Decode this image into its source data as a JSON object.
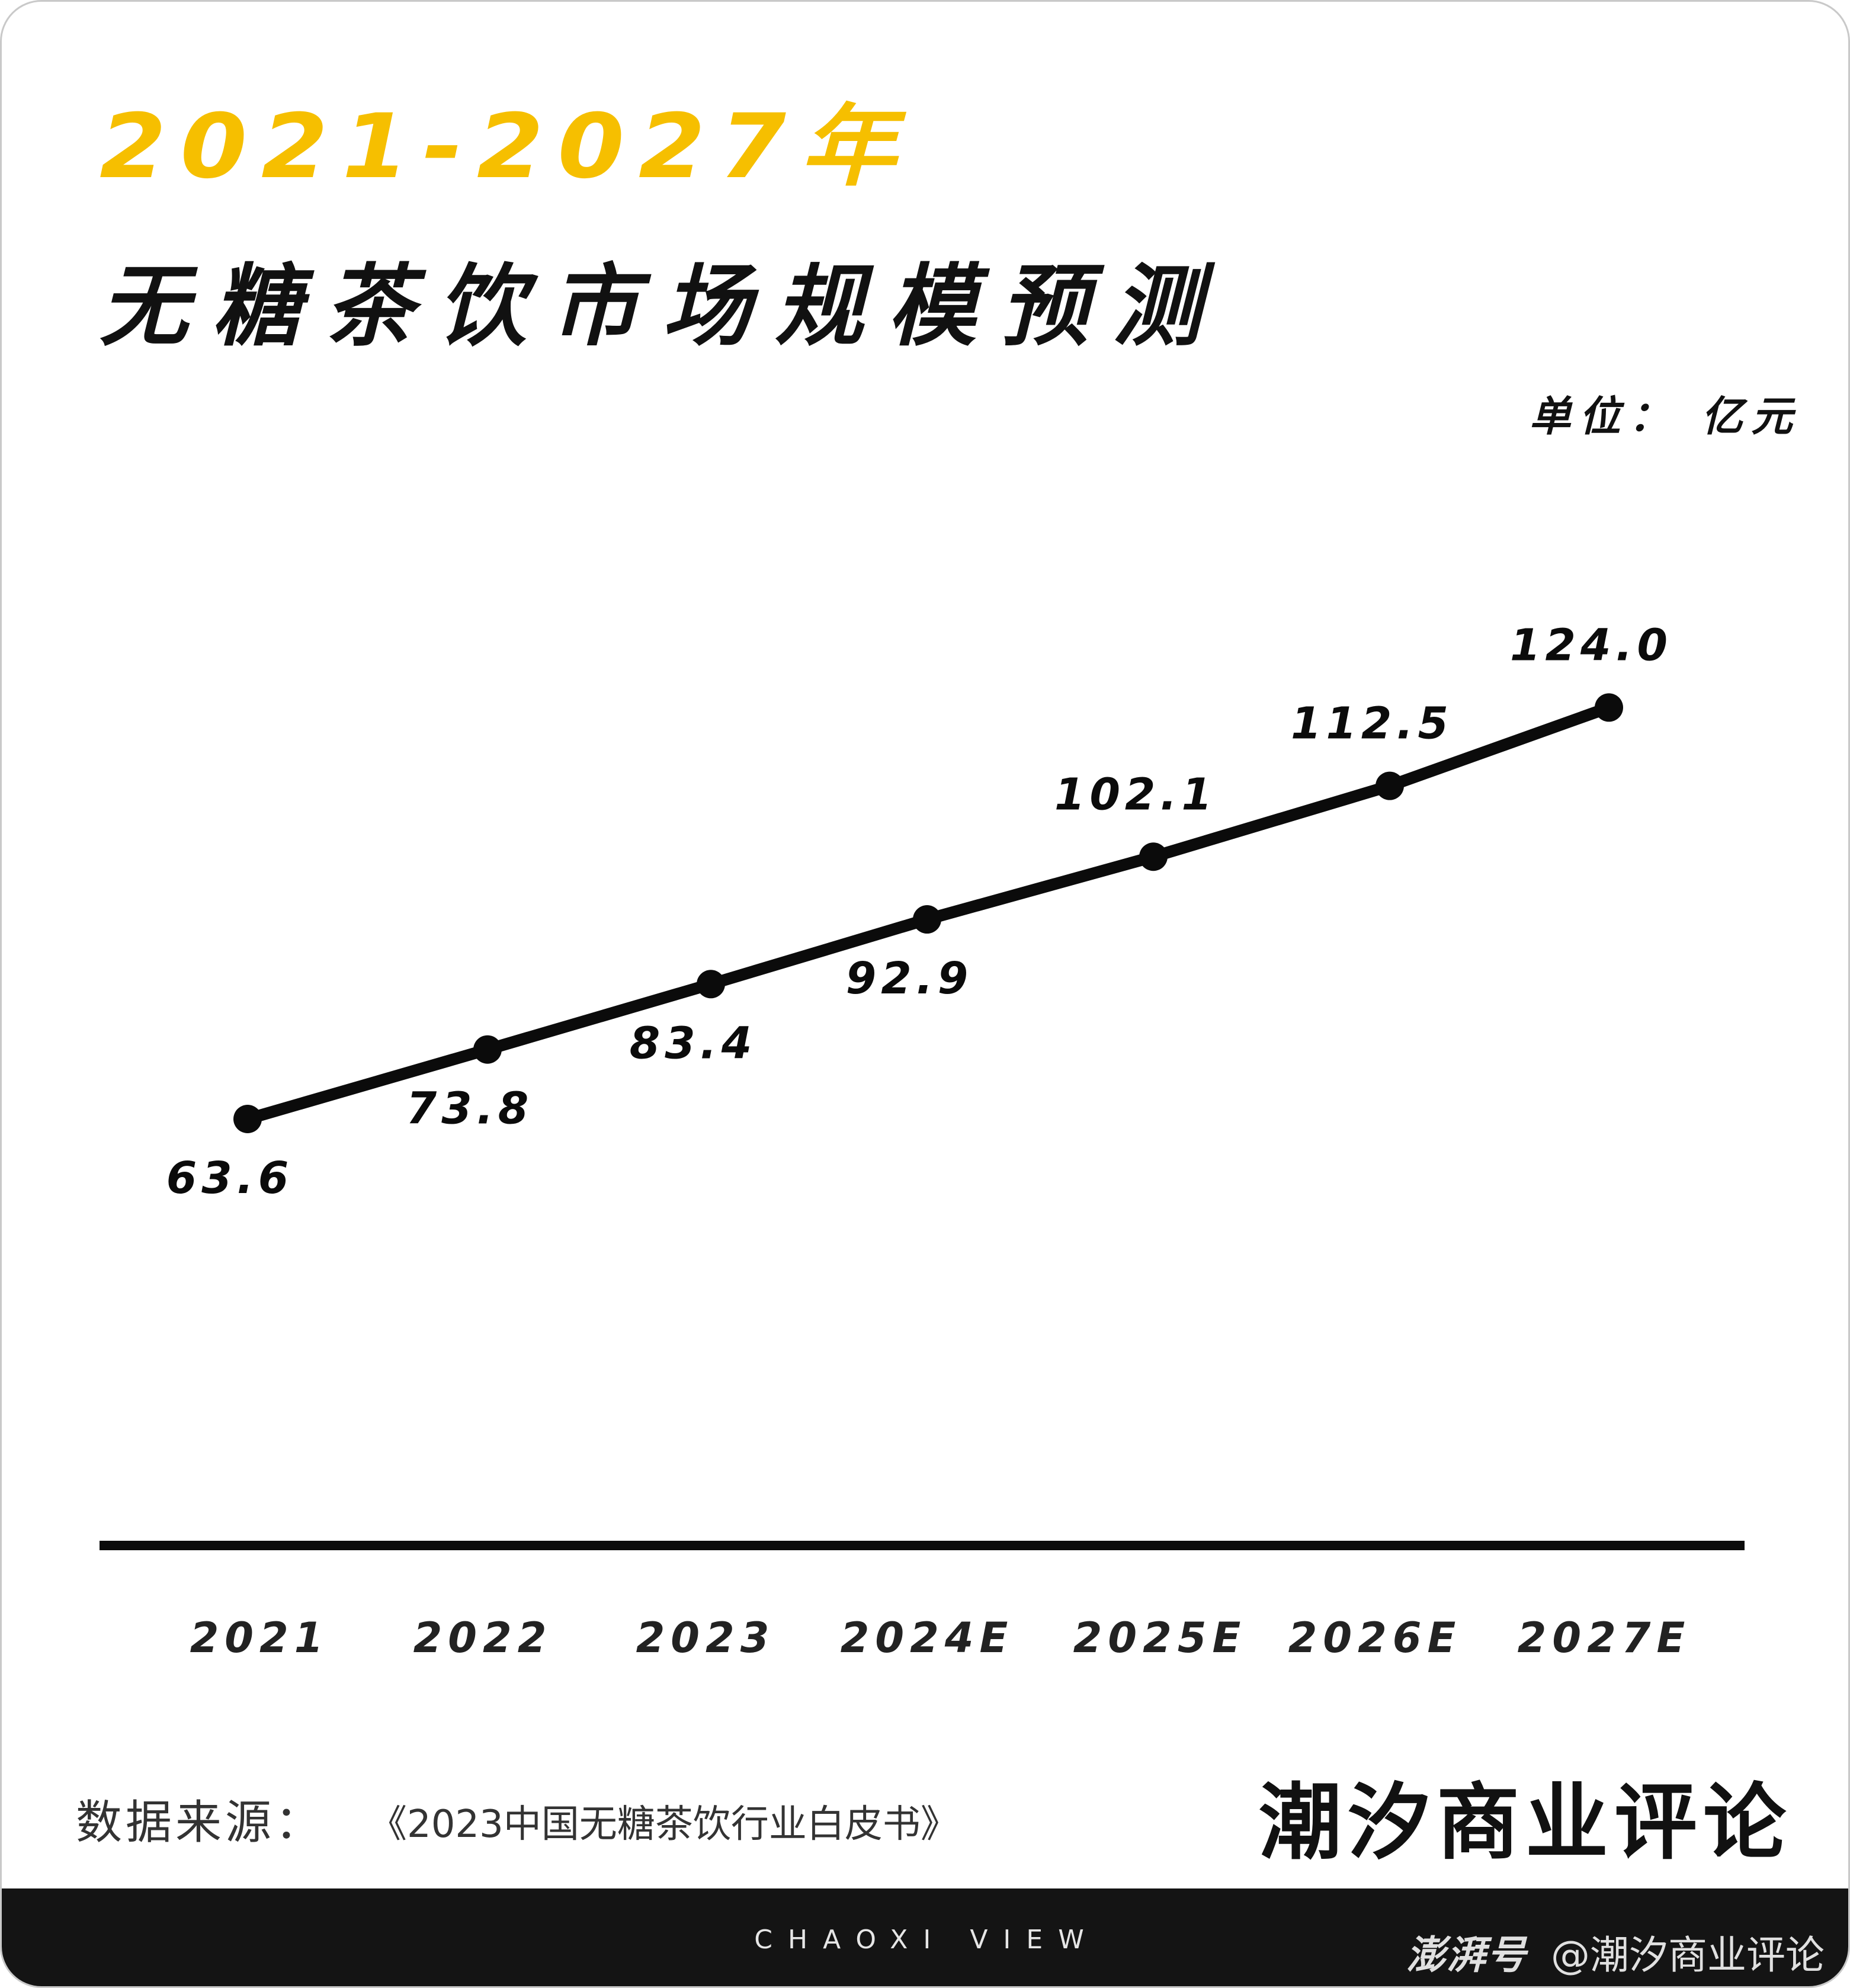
{
  "header": {
    "year_title": "2021-2027年",
    "main_title": "无糖茶饮市场规模预测",
    "unit": "单位： 亿元"
  },
  "colors": {
    "accent": "#F6BF00",
    "ink": "#0b0b0b",
    "footer_bg": "#141414"
  },
  "chart_data": {
    "type": "line",
    "categories": [
      "2021",
      "2022",
      "2023",
      "2024E",
      "2025E",
      "2026E",
      "2027E"
    ],
    "series": [
      {
        "values": [
          63.6,
          73.8,
          83.4,
          92.9,
          102.1,
          112.5,
          124.0
        ]
      }
    ],
    "value_labels": [
      "63.6",
      "73.8",
      "83.4",
      "92.9",
      "102.1",
      "112.5",
      "124.0"
    ],
    "label_position": [
      "below",
      "below",
      "below",
      "below",
      "above",
      "above",
      "above"
    ],
    "title": "2021-2027年 无糖茶饮市场规模预测",
    "ylabel": "单位： 亿元",
    "grid": false,
    "legend": "none",
    "y_axis_visible": false
  },
  "source": {
    "label": "数据来源：",
    "text": "《2023中国无糖茶饮行业白皮书》"
  },
  "brand": {
    "name": "潮汐商业评论",
    "subtitle": "CHAOXI VIEW"
  },
  "watermark": {
    "logo": "澎湃号",
    "text": "@潮汐商业评论"
  }
}
